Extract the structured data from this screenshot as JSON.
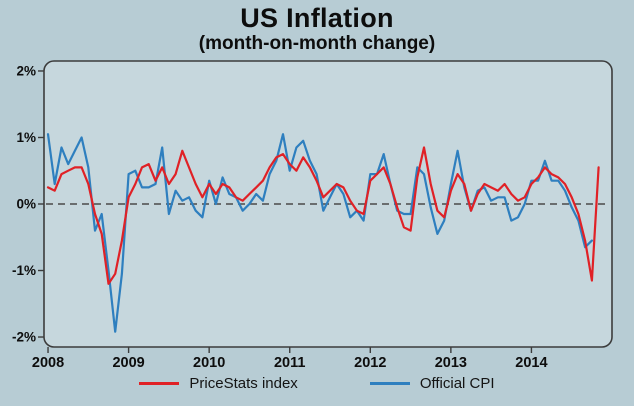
{
  "page": {
    "title": "US Inflation",
    "subtitle": "(month-on-month change)"
  },
  "colors": {
    "page_bg": "#b7ccd4",
    "plot_bg": "#c6d7dd",
    "plot_border": "#3c3c3c",
    "zero_line": "#4a4a4a",
    "text": "#0d0d0d",
    "pricestats_red": "#e02126",
    "cpi_blue": "#2e7fbf"
  },
  "chart_data": {
    "type": "line",
    "title": "US Inflation",
    "subtitle": "(month-on-month change)",
    "x_unit": "month",
    "x_start": "2008-01",
    "xlim": [
      2007.95,
      2015.0
    ],
    "ylim": [
      -2.15,
      2.15
    ],
    "grid": false,
    "zero_line": "dashed",
    "legend_position": "bottom",
    "x_tick_labels": [
      "2008",
      "2009",
      "2010",
      "2011",
      "2012",
      "2013",
      "2014"
    ],
    "x_tick_values": [
      2008,
      2009,
      2010,
      2011,
      2012,
      2013,
      2014
    ],
    "y_tick_labels": [
      "2%",
      "1%",
      "0%",
      "-1%",
      "-2%"
    ],
    "y_tick_values": [
      2,
      1,
      0,
      -1,
      -2
    ],
    "series": [
      {
        "name": "PriceStats index",
        "color": "#e02126",
        "start": "2008-01",
        "values": [
          0.25,
          0.2,
          0.45,
          0.5,
          0.55,
          0.55,
          0.3,
          -0.15,
          -0.45,
          -1.2,
          -1.05,
          -0.55,
          0.1,
          0.3,
          0.55,
          0.6,
          0.35,
          0.55,
          0.3,
          0.45,
          0.8,
          0.55,
          0.3,
          0.1,
          0.3,
          0.15,
          0.3,
          0.25,
          0.1,
          0.05,
          0.15,
          0.25,
          0.35,
          0.55,
          0.7,
          0.75,
          0.6,
          0.5,
          0.7,
          0.55,
          0.35,
          0.1,
          0.2,
          0.3,
          0.25,
          0.05,
          -0.1,
          -0.15,
          0.35,
          0.45,
          0.55,
          0.3,
          -0.05,
          -0.35,
          -0.4,
          0.4,
          0.85,
          0.3,
          -0.1,
          -0.2,
          0.2,
          0.45,
          0.3,
          -0.1,
          0.15,
          0.3,
          0.25,
          0.2,
          0.3,
          0.15,
          0.05,
          0.1,
          0.3,
          0.4,
          0.55,
          0.45,
          0.4,
          0.3,
          0.1,
          -0.15,
          -0.55,
          -1.15,
          0.55
        ]
      },
      {
        "name": "Official CPI",
        "color": "#2e7fbf",
        "start": "2008-01",
        "values": [
          1.05,
          0.3,
          0.85,
          0.6,
          0.8,
          1.0,
          0.55,
          -0.4,
          -0.15,
          -1.0,
          -1.92,
          -1.05,
          0.45,
          0.5,
          0.25,
          0.25,
          0.3,
          0.85,
          -0.15,
          0.2,
          0.05,
          0.1,
          -0.1,
          -0.2,
          0.35,
          0.0,
          0.4,
          0.15,
          0.1,
          -0.1,
          0.0,
          0.15,
          0.05,
          0.45,
          0.65,
          1.05,
          0.5,
          0.85,
          0.95,
          0.65,
          0.45,
          -0.1,
          0.1,
          0.3,
          0.15,
          -0.2,
          -0.1,
          -0.25,
          0.45,
          0.45,
          0.75,
          0.3,
          -0.1,
          -0.15,
          -0.15,
          0.55,
          0.45,
          -0.05,
          -0.45,
          -0.25,
          0.3,
          0.8,
          0.25,
          -0.1,
          0.2,
          0.25,
          0.05,
          0.1,
          0.1,
          -0.25,
          -0.2,
          0.0,
          0.35,
          0.35,
          0.65,
          0.35,
          0.35,
          0.2,
          -0.05,
          -0.25,
          -0.65,
          -0.55
        ]
      }
    ]
  }
}
